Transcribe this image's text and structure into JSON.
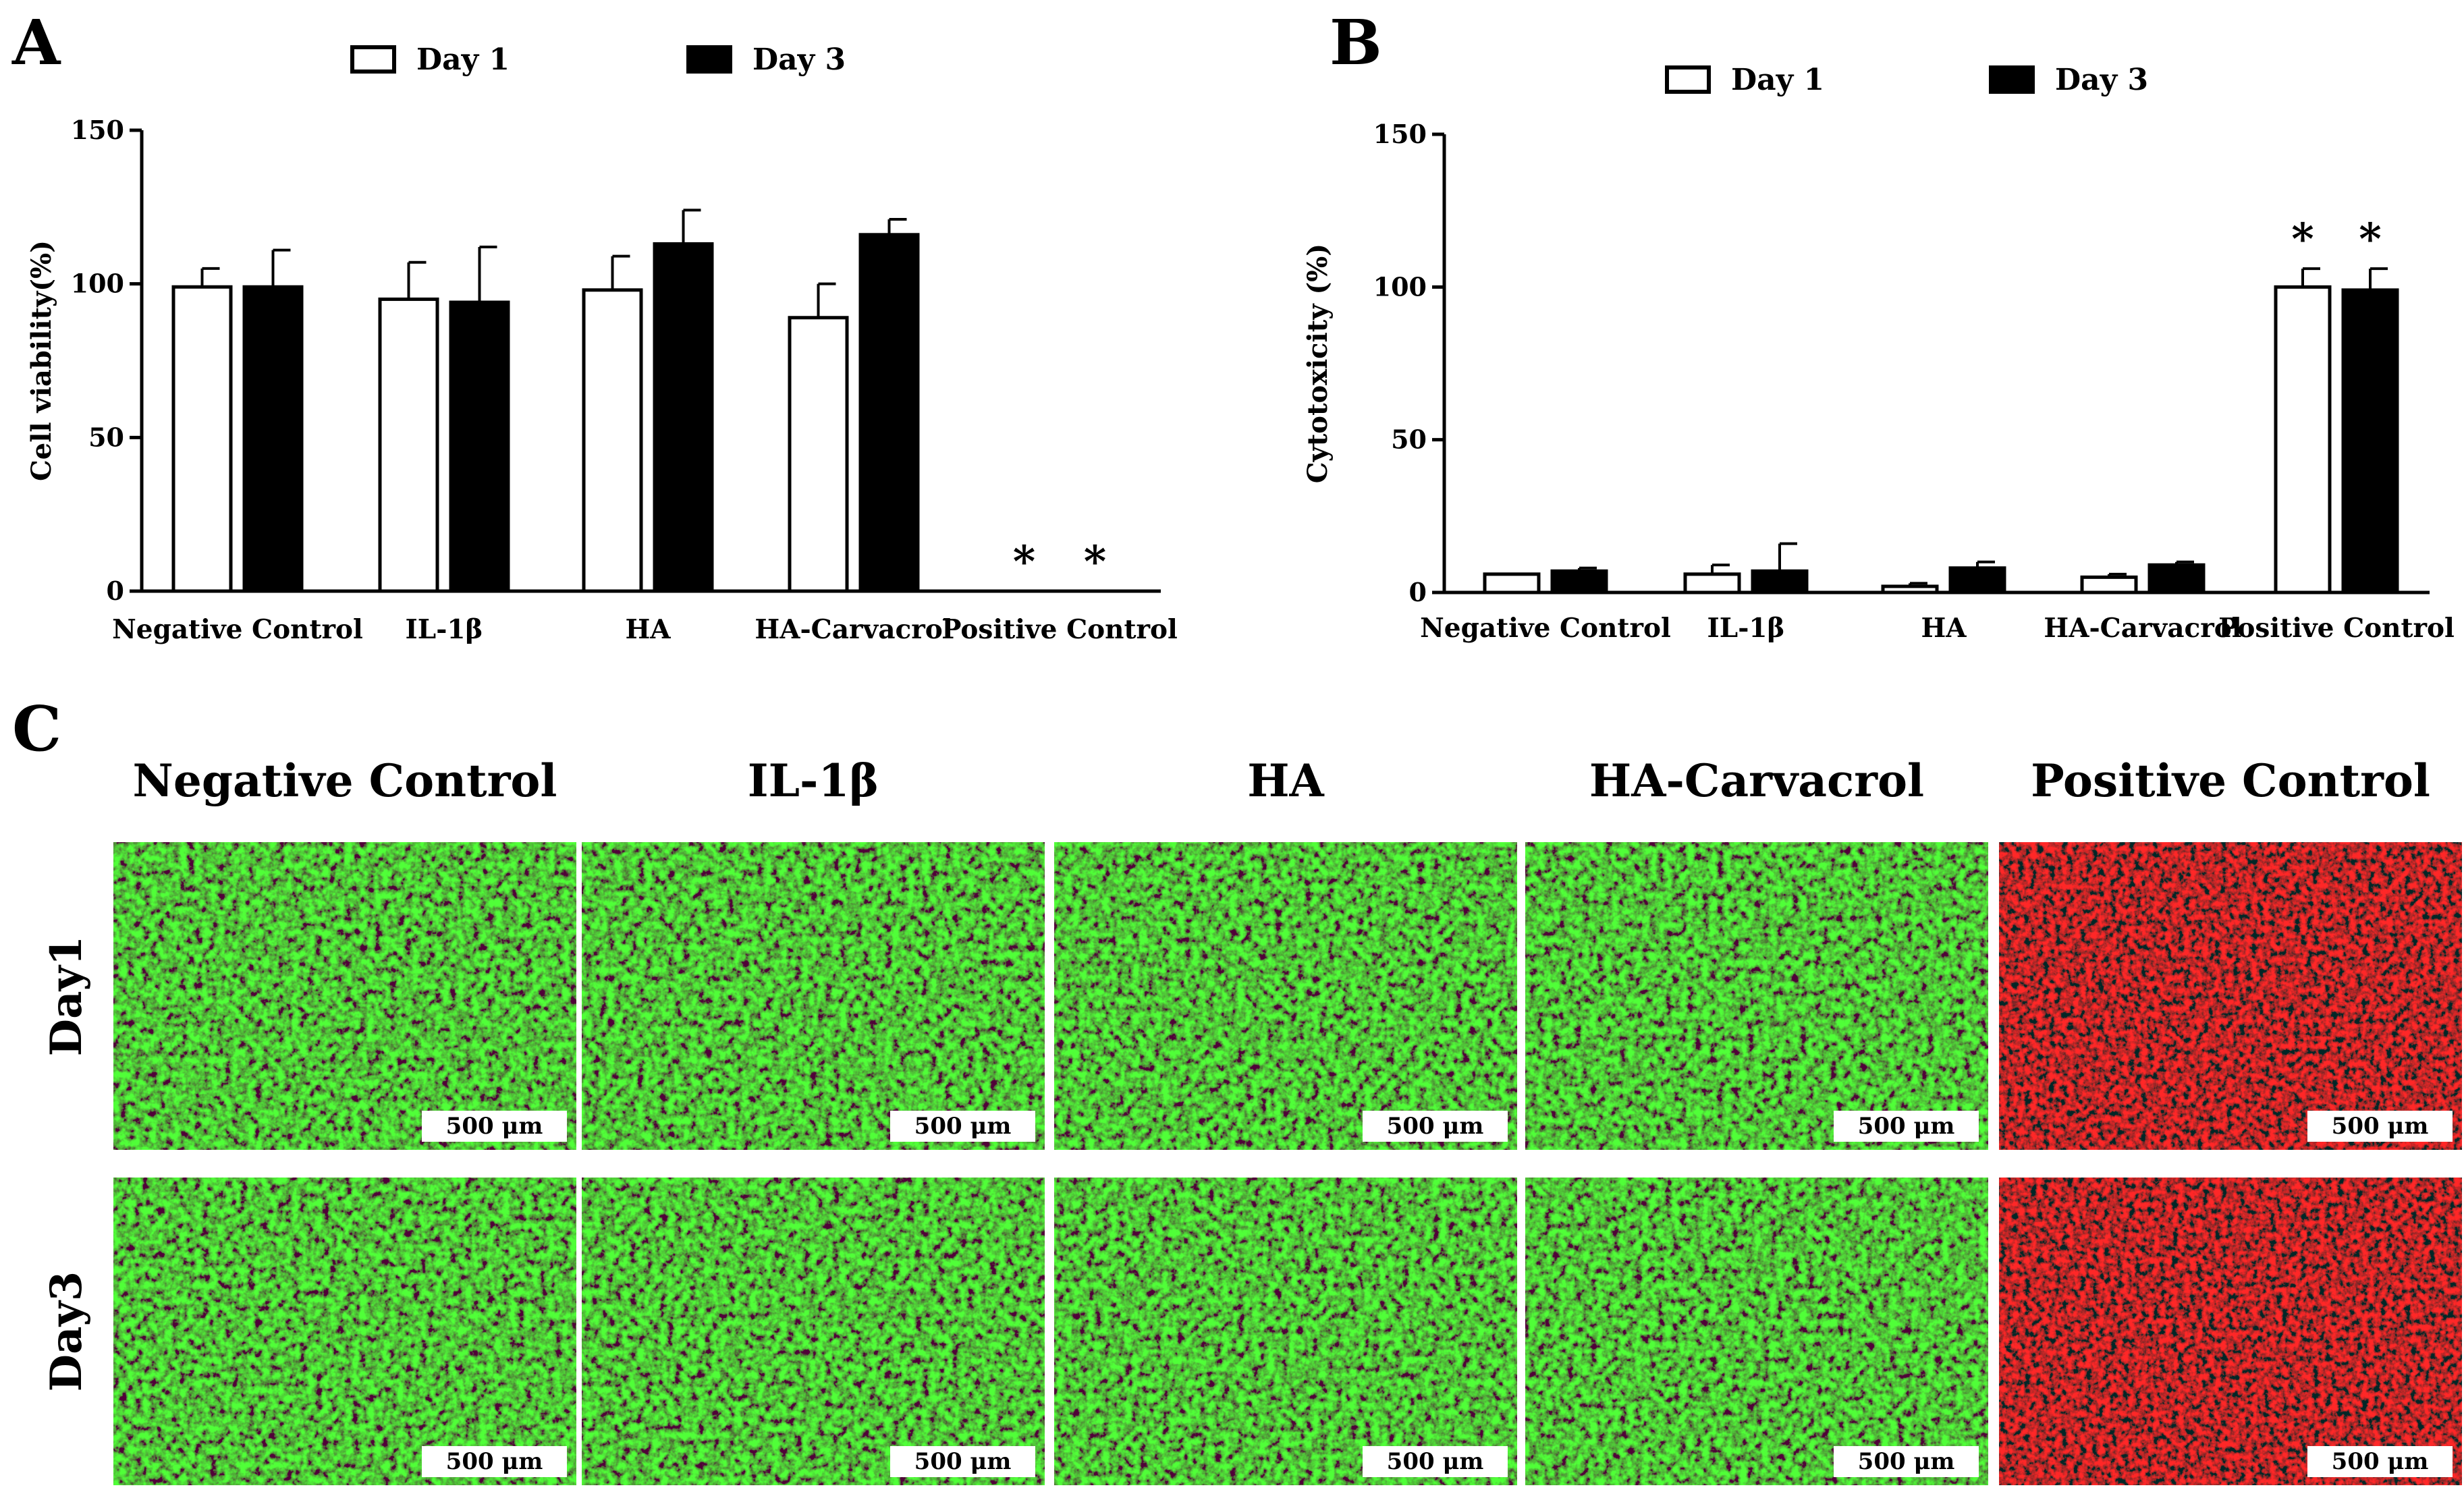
{
  "panels": {
    "a": "A",
    "b": "B",
    "c": "C"
  },
  "chart_data": [
    {
      "type": "bar",
      "title": "",
      "xlabel": "",
      "ylabel": "Cell viability(%)",
      "ylim": [
        0,
        150
      ],
      "yticks": [
        0,
        50,
        100,
        150
      ],
      "categories": [
        "Negative Control",
        "IL-1β",
        "HA",
        "HA-Carvacrol",
        "Positive Control"
      ],
      "legend_position": "top",
      "series": [
        {
          "name": "Day 1",
          "color": "#ffffff",
          "values": [
            99,
            95,
            98,
            89,
            0
          ],
          "errors": [
            6,
            12,
            11,
            11,
            0
          ]
        },
        {
          "name": "Day 3",
          "color": "#000000",
          "values": [
            99,
            94,
            113,
            116,
            0
          ],
          "errors": [
            12,
            18,
            11,
            5,
            0
          ]
        }
      ],
      "annotations": [
        {
          "category": "Positive Control",
          "series": "Day 1",
          "text": "*"
        },
        {
          "category": "Positive Control",
          "series": "Day 3",
          "text": "*"
        }
      ]
    },
    {
      "type": "bar",
      "title": "",
      "xlabel": "",
      "ylabel": "Cytotoxicity (%)",
      "ylim": [
        0,
        150
      ],
      "yticks": [
        0,
        50,
        100,
        150
      ],
      "categories": [
        "Negative Control",
        "IL-1β",
        "HA",
        "HA-Carvacrol",
        "Positive Control"
      ],
      "legend_position": "top",
      "series": [
        {
          "name": "Day 1",
          "color": "#ffffff",
          "values": [
            6,
            6,
            2,
            5,
            100
          ],
          "errors": [
            0,
            3,
            1,
            1,
            6
          ]
        },
        {
          "name": "Day 3",
          "color": "#000000",
          "values": [
            7,
            7,
            8,
            9,
            99
          ],
          "errors": [
            1,
            9,
            2,
            1,
            7
          ]
        }
      ],
      "annotations": [
        {
          "category": "Positive Control",
          "series": "Day 1",
          "text": "*"
        },
        {
          "category": "Positive Control",
          "series": "Day 3",
          "text": "*"
        }
      ]
    }
  ],
  "micrographs": {
    "columns": [
      "Negative Control",
      "IL-1β",
      "HA",
      "HA-Carvacrol",
      "Positive Control"
    ],
    "rows": [
      "Day1",
      "Day3"
    ],
    "scale_bar": "500 μm",
    "stain_colors": {
      "live": "#2fb52b",
      "dead": "#e01818",
      "background": "#0b1a08",
      "dead_background": "#1c0403"
    }
  }
}
